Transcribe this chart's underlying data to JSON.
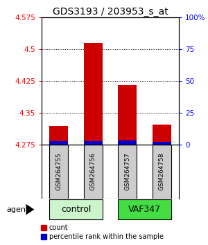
{
  "title": "GDS3193 / 203953_s_at",
  "samples": [
    "GSM264755",
    "GSM264756",
    "GSM264757",
    "GSM264758"
  ],
  "groups": [
    "control",
    "control",
    "VAF347",
    "VAF347"
  ],
  "group_labels": [
    "control",
    "VAF347"
  ],
  "group_colors": [
    "#ccf5cc",
    "#44dd44"
  ],
  "red_values": [
    4.318,
    4.515,
    4.415,
    4.322
  ],
  "blue_values": [
    4.283,
    4.283,
    4.284,
    4.282
  ],
  "y_min": 4.275,
  "y_max": 4.575,
  "y_ticks_left": [
    4.275,
    4.35,
    4.425,
    4.5,
    4.575
  ],
  "y_ticks_right": [
    0,
    25,
    50,
    75,
    100
  ],
  "bar_width": 0.55,
  "agent_label": "agent",
  "legend_count_color": "#cc0000",
  "legend_pct_color": "#0000cc",
  "legend_count_label": "count",
  "legend_pct_label": "percentile rank within the sample",
  "title_fontsize": 10,
  "tick_fontsize": 7.5,
  "bar_base": 4.275
}
